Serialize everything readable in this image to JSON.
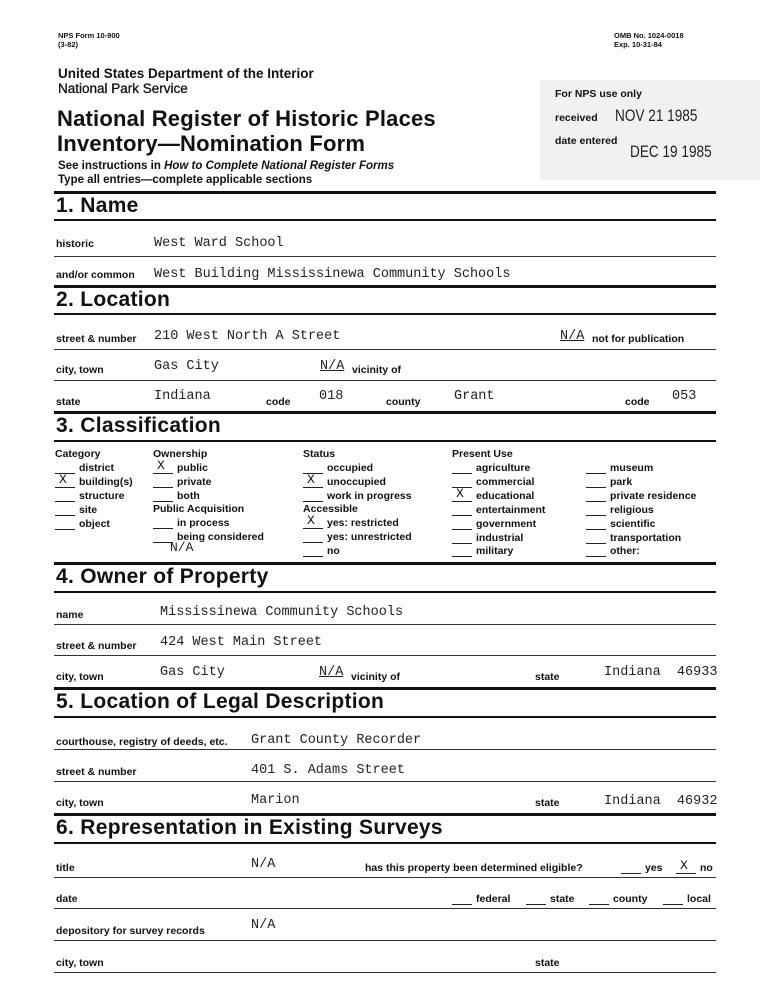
{
  "header": {
    "form_number": "NPS Form 10-900",
    "form_revision": "(3-82)",
    "omb_number": "OMB No. 1024-0018",
    "expiration": "Exp. 10-31-84",
    "department": "United States Department of the Interior",
    "agency": "National Park Service",
    "title_line1": "National Register of Historic Places",
    "title_line2": "Inventory—Nomination Form",
    "instructions_prefix": "See instructions in ",
    "instructions_ref": "How to Complete National Register Forms",
    "instructions_line2": "Type all entries—complete applicable sections"
  },
  "nps_use": {
    "heading": "For NPS use only",
    "received_label": "received",
    "received_stamp": "NOV 21 1985",
    "date_entered_label": "date entered",
    "date_entered_stamp": "DEC 19 1985"
  },
  "name": {
    "heading": "1.  Name",
    "historic_label": "historic",
    "historic": "West Ward School",
    "common_label": "and/or common",
    "common": "West Building Mississinewa Community Schools"
  },
  "location": {
    "heading": "2.  Location",
    "street_label": "street & number",
    "street": "210 West North A Street",
    "not_for_pub_value": "N/A",
    "not_for_pub_label": "not for publication",
    "city_label": "city, town",
    "city": "Gas City",
    "vicinity_value": "N/A",
    "vicinity_label": "vicinity of",
    "state_label": "state",
    "state": "Indiana",
    "state_code_label": "code",
    "state_code": "018",
    "county_label": "county",
    "county": "Grant",
    "county_code_label": "code",
    "county_code": "053"
  },
  "classification": {
    "heading": "3.  Classification",
    "category": {
      "heading": "Category",
      "items": [
        {
          "label": "district",
          "mark": ""
        },
        {
          "label": "building(s)",
          "mark": "X"
        },
        {
          "label": "structure",
          "mark": ""
        },
        {
          "label": "site",
          "mark": ""
        },
        {
          "label": "object",
          "mark": ""
        }
      ]
    },
    "ownership": {
      "heading": "Ownership",
      "items": [
        {
          "label": "public",
          "mark": "X"
        },
        {
          "label": "private",
          "mark": ""
        },
        {
          "label": "both",
          "mark": ""
        }
      ]
    },
    "public_acquisition": {
      "heading": "Public Acquisition",
      "items": [
        {
          "label": "in process",
          "mark": ""
        },
        {
          "label": "being considered",
          "mark": ""
        }
      ],
      "note": "N/A"
    },
    "status": {
      "heading": "Status",
      "items": [
        {
          "label": "occupied",
          "mark": ""
        },
        {
          "label": "unoccupied",
          "mark": "X"
        },
        {
          "label": "work in progress",
          "mark": ""
        }
      ]
    },
    "accessible": {
      "heading": "Accessible",
      "items": [
        {
          "label": "yes: restricted",
          "mark": "X"
        },
        {
          "label": "yes: unrestricted",
          "mark": ""
        },
        {
          "label": "no",
          "mark": ""
        }
      ]
    },
    "present_use": {
      "heading": "Present Use",
      "items": [
        {
          "label": "agriculture",
          "mark": ""
        },
        {
          "label": "commercial",
          "mark": ""
        },
        {
          "label": "educational",
          "mark": "X"
        },
        {
          "label": "entertainment",
          "mark": ""
        },
        {
          "label": "government",
          "mark": ""
        },
        {
          "label": "industrial",
          "mark": ""
        },
        {
          "label": "military",
          "mark": ""
        }
      ]
    },
    "present_use_2": {
      "items": [
        {
          "label": "museum",
          "mark": ""
        },
        {
          "label": "park",
          "mark": ""
        },
        {
          "label": "private residence",
          "mark": ""
        },
        {
          "label": "religious",
          "mark": ""
        },
        {
          "label": "scientific",
          "mark": ""
        },
        {
          "label": "transportation",
          "mark": ""
        },
        {
          "label": "other:",
          "mark": ""
        }
      ]
    }
  },
  "owner": {
    "heading": "4.  Owner of Property",
    "name_label": "name",
    "name": "Mississinewa Community Schools",
    "street_label": "street & number",
    "street": "424 West Main Street",
    "city_label": "city, town",
    "city": "Gas City",
    "vicinity_value": "N/A",
    "vicinity_label": "vicinity of",
    "state_label": "state",
    "state": "Indiana  46933"
  },
  "legal": {
    "heading": "5.  Location of Legal Description",
    "courthouse_label": "courthouse, registry of deeds, etc.",
    "courthouse": "Grant County Recorder",
    "street_label": "street & number",
    "street": "401 S. Adams Street",
    "city_label": "city, town",
    "city": "Marion",
    "state_label": "state",
    "state": "Indiana  46932"
  },
  "surveys": {
    "heading": "6.  Representation in Existing Surveys",
    "title_label": "title",
    "title": "N/A",
    "eligible_label": "has this property been determined eligible?",
    "eligible_yes_label": "yes",
    "eligible_no_mark": "X",
    "eligible_no_label": "no",
    "date_label": "date",
    "federal_label": "federal",
    "state_level_label": "state",
    "county_label": "county",
    "local_label": "local",
    "depository_label": "depository for survey records",
    "depository": "N/A",
    "city_label": "city, town",
    "state_label": "state"
  }
}
